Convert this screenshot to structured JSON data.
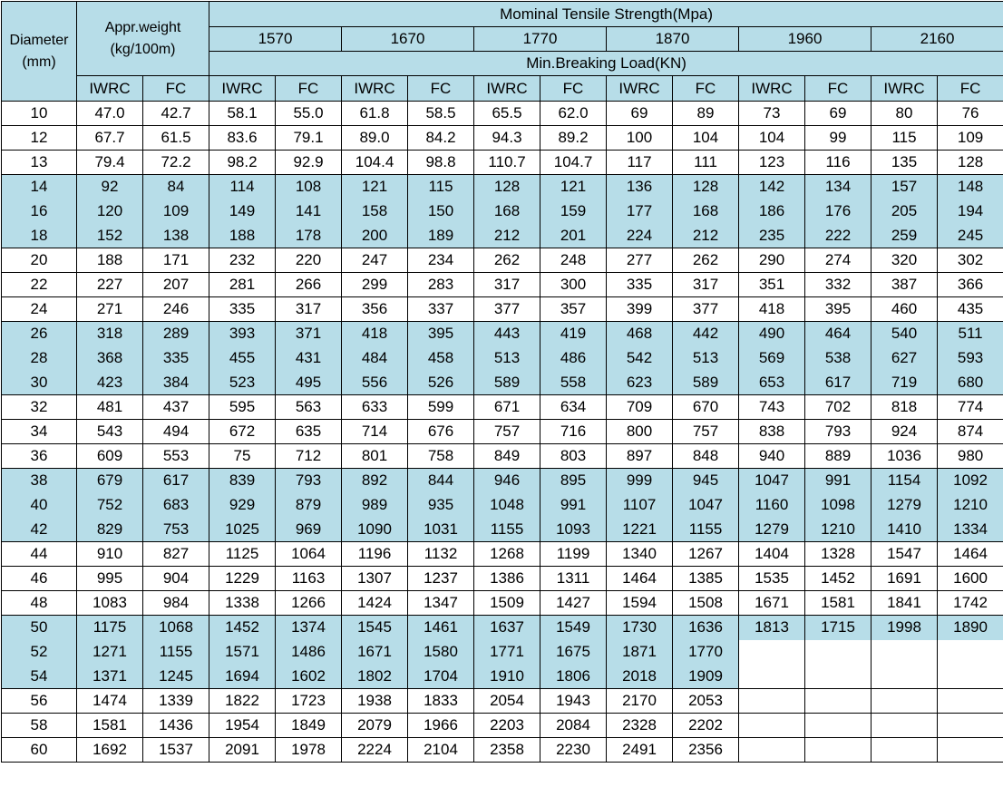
{
  "header": {
    "diameter": "Diameter\n(mm)",
    "weight": "Appr.weight\n(kg/100m)",
    "strength_title": "Mominal Tensile Strength(Mpa)",
    "strengths": [
      "1570",
      "1670",
      "1770",
      "1870",
      "1960",
      "2160"
    ],
    "load_title": "Min.Breaking Load(KN)",
    "sub": [
      "IWRC",
      "FC",
      "IWRC",
      "FC",
      "IWRC",
      "FC",
      "IWRC",
      "FC",
      "IWRC",
      "FC",
      "IWRC",
      "FC",
      "IWRC",
      "FC"
    ]
  },
  "rows": [
    [
      "10",
      "47.0",
      "42.7",
      "58.1",
      "55.0",
      "61.8",
      "58.5",
      "65.5",
      "62.0",
      "69",
      "89",
      "73",
      "69",
      "80",
      "76"
    ],
    [
      "12",
      "67.7",
      "61.5",
      "83.6",
      "79.1",
      "89.0",
      "84.2",
      "94.3",
      "89.2",
      "100",
      "104",
      "104",
      "99",
      "115",
      "109"
    ],
    [
      "13",
      "79.4",
      "72.2",
      "98.2",
      "92.9",
      "104.4",
      "98.8",
      "110.7",
      "104.7",
      "117",
      "111",
      "123",
      "116",
      "135",
      "128"
    ],
    [
      "14",
      "92",
      "84",
      "114",
      "108",
      "121",
      "115",
      "128",
      "121",
      "136",
      "128",
      "142",
      "134",
      "157",
      "148"
    ],
    [
      "16",
      "120",
      "109",
      "149",
      "141",
      "158",
      "150",
      "168",
      "159",
      "177",
      "168",
      "186",
      "176",
      "205",
      "194"
    ],
    [
      "18",
      "152",
      "138",
      "188",
      "178",
      "200",
      "189",
      "212",
      "201",
      "224",
      "212",
      "235",
      "222",
      "259",
      "245"
    ],
    [
      "20",
      "188",
      "171",
      "232",
      "220",
      "247",
      "234",
      "262",
      "248",
      "277",
      "262",
      "290",
      "274",
      "320",
      "302"
    ],
    [
      "22",
      "227",
      "207",
      "281",
      "266",
      "299",
      "283",
      "317",
      "300",
      "335",
      "317",
      "351",
      "332",
      "387",
      "366"
    ],
    [
      "24",
      "271",
      "246",
      "335",
      "317",
      "356",
      "337",
      "377",
      "357",
      "399",
      "377",
      "418",
      "395",
      "460",
      "435"
    ],
    [
      "26",
      "318",
      "289",
      "393",
      "371",
      "418",
      "395",
      "443",
      "419",
      "468",
      "442",
      "490",
      "464",
      "540",
      "511"
    ],
    [
      "28",
      "368",
      "335",
      "455",
      "431",
      "484",
      "458",
      "513",
      "486",
      "542",
      "513",
      "569",
      "538",
      "627",
      "593"
    ],
    [
      "30",
      "423",
      "384",
      "523",
      "495",
      "556",
      "526",
      "589",
      "558",
      "623",
      "589",
      "653",
      "617",
      "719",
      "680"
    ],
    [
      "32",
      "481",
      "437",
      "595",
      "563",
      "633",
      "599",
      "671",
      "634",
      "709",
      "670",
      "743",
      "702",
      "818",
      "774"
    ],
    [
      "34",
      "543",
      "494",
      "672",
      "635",
      "714",
      "676",
      "757",
      "716",
      "800",
      "757",
      "838",
      "793",
      "924",
      "874"
    ],
    [
      "36",
      "609",
      "553",
      "75",
      "712",
      "801",
      "758",
      "849",
      "803",
      "897",
      "848",
      "940",
      "889",
      "1036",
      "980"
    ],
    [
      "38",
      "679",
      "617",
      "839",
      "793",
      "892",
      "844",
      "946",
      "895",
      "999",
      "945",
      "1047",
      "991",
      "1154",
      "1092"
    ],
    [
      "40",
      "752",
      "683",
      "929",
      "879",
      "989",
      "935",
      "1048",
      "991",
      "1107",
      "1047",
      "1160",
      "1098",
      "1279",
      "1210"
    ],
    [
      "42",
      "829",
      "753",
      "1025",
      "969",
      "1090",
      "1031",
      "1155",
      "1093",
      "1221",
      "1155",
      "1279",
      "1210",
      "1410",
      "1334"
    ],
    [
      "44",
      "910",
      "827",
      "1125",
      "1064",
      "1196",
      "1132",
      "1268",
      "1199",
      "1340",
      "1267",
      "1404",
      "1328",
      "1547",
      "1464"
    ],
    [
      "46",
      "995",
      "904",
      "1229",
      "1163",
      "1307",
      "1237",
      "1386",
      "1311",
      "1464",
      "1385",
      "1535",
      "1452",
      "1691",
      "1600"
    ],
    [
      "48",
      "1083",
      "984",
      "1338",
      "1266",
      "1424",
      "1347",
      "1509",
      "1427",
      "1594",
      "1508",
      "1671",
      "1581",
      "1841",
      "1742"
    ],
    [
      "50",
      "1175",
      "1068",
      "1452",
      "1374",
      "1545",
      "1461",
      "1637",
      "1549",
      "1730",
      "1636",
      "1813",
      "1715",
      "1998",
      "1890"
    ],
    [
      "52",
      "1271",
      "1155",
      "1571",
      "1486",
      "1671",
      "1580",
      "1771",
      "1675",
      "1871",
      "1770",
      "",
      "",
      "",
      ""
    ],
    [
      "54",
      "1371",
      "1245",
      "1694",
      "1602",
      "1802",
      "1704",
      "1910",
      "1806",
      "2018",
      "1909",
      "",
      "",
      "",
      ""
    ],
    [
      "56",
      "1474",
      "1339",
      "1822",
      "1723",
      "1938",
      "1833",
      "2054",
      "1943",
      "2170",
      "2053",
      "",
      "",
      "",
      ""
    ],
    [
      "58",
      "1581",
      "1436",
      "1954",
      "1849",
      "2079",
      "1966",
      "2203",
      "2084",
      "2328",
      "2202",
      "",
      "",
      "",
      ""
    ],
    [
      "60",
      "1692",
      "1537",
      "2091",
      "1978",
      "2224",
      "2104",
      "2358",
      "2230",
      "2491",
      "2356",
      "",
      "",
      "",
      ""
    ]
  ],
  "colors": {
    "header_bg": "#b7dde8",
    "band_bg": "#b7dde8"
  },
  "band_groups": [
    1,
    3,
    5,
    7
  ]
}
